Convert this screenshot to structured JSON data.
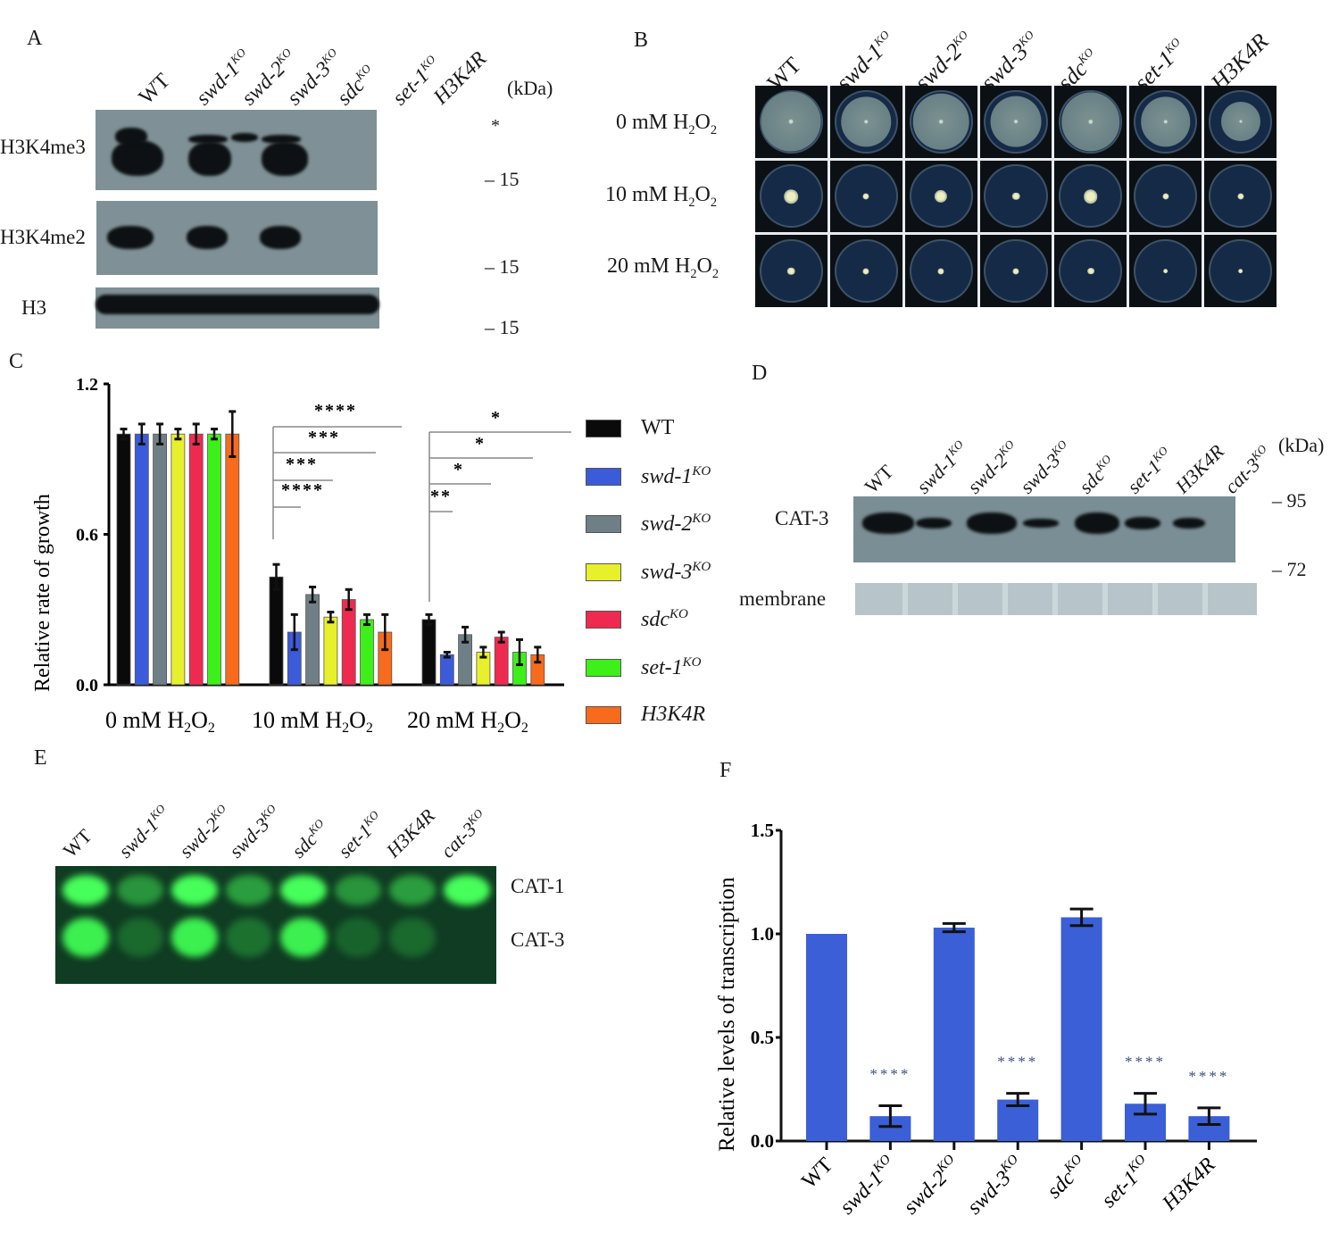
{
  "strains_7": [
    "WT",
    "swd-1",
    "swd-2",
    "swd-3",
    "sdc",
    "set-1",
    "H3K4R"
  ],
  "panels": {
    "A": {
      "letter": "A",
      "lanes": [
        {
          "base": "WT",
          "sup": ""
        },
        {
          "base": "swd-1",
          "sup": "KO"
        },
        {
          "base": "swd-2",
          "sup": "KO"
        },
        {
          "base": "swd-3",
          "sup": "KO"
        },
        {
          "base": "sdc",
          "sup": "KO"
        },
        {
          "base": "set-1",
          "sup": "KO"
        },
        {
          "base": "H3K4R",
          "sup": ""
        }
      ],
      "kda_label": "(kDa)",
      "rows": [
        {
          "label": "H3K4me3",
          "marker": "15",
          "star": "*"
        },
        {
          "label": "H3K4me2",
          "marker": "15"
        },
        {
          "label": "H3",
          "marker": "15"
        }
      ]
    },
    "B": {
      "letter": "B",
      "columns": [
        {
          "base": "WT",
          "sup": ""
        },
        {
          "base": "swd-1",
          "sup": "KO"
        },
        {
          "base": "swd-2",
          "sup": "KO"
        },
        {
          "base": "swd-3",
          "sup": "KO"
        },
        {
          "base": "sdc",
          "sup": "KO"
        },
        {
          "base": "set-1",
          "sup": "KO"
        },
        {
          "base": "H3K4R",
          "sup": ""
        }
      ],
      "rows": [
        {
          "prefix": "0 mM H",
          "sub1": "2",
          "mid": "O",
          "sub2": "2"
        },
        {
          "prefix": "10 mM H",
          "sub1": "2",
          "mid": "O",
          "sub2": "2"
        },
        {
          "prefix": "20 mM H",
          "sub1": "2",
          "mid": "O",
          "sub2": "2"
        }
      ]
    },
    "C": {
      "letter": "C"
    },
    "D": {
      "letter": "D",
      "lanes": [
        {
          "base": "WT",
          "sup": ""
        },
        {
          "base": "swd-1",
          "sup": "KO"
        },
        {
          "base": "swd-2",
          "sup": "KO"
        },
        {
          "base": "swd-3",
          "sup": "KO"
        },
        {
          "base": "sdc",
          "sup": "KO"
        },
        {
          "base": "set-1",
          "sup": "KO"
        },
        {
          "base": "H3K4R",
          "sup": ""
        },
        {
          "base": "cat-3",
          "sup": "KO"
        }
      ],
      "kda_label": "(kDa)",
      "row_label": "CAT-3",
      "membrane_label": "membrane",
      "markers": [
        "95",
        "72"
      ]
    },
    "E": {
      "letter": "E",
      "lanes": [
        {
          "base": "WT",
          "sup": ""
        },
        {
          "base": "swd-1",
          "sup": "KO"
        },
        {
          "base": "swd-2",
          "sup": "KO"
        },
        {
          "base": "swd-3",
          "sup": "KO"
        },
        {
          "base": "sdc",
          "sup": "KO"
        },
        {
          "base": "set-1",
          "sup": "KO"
        },
        {
          "base": "H3K4R",
          "sup": ""
        },
        {
          "base": "cat-3",
          "sup": "KO"
        }
      ],
      "bands": [
        "CAT-1",
        "CAT-3"
      ]
    },
    "F": {
      "letter": "F"
    }
  },
  "chart_data": [
    {
      "panel": "C",
      "type": "bar",
      "title": "",
      "xlabel": "",
      "ylabel": "Relative rate of growth",
      "ylim": [
        0,
        1.2
      ],
      "yticks": [
        "0.0",
        "0.6",
        "1.2"
      ],
      "categories": [
        "0 mM H2O2",
        "10 mM H2O2",
        "20 mM H2O2"
      ],
      "category_labels": [
        {
          "prefix": "0 mM H",
          "sub1": "2",
          "mid": "O",
          "sub2": "2"
        },
        {
          "prefix": "10 mM H",
          "sub1": "2",
          "mid": "O",
          "sub2": "2"
        },
        {
          "prefix": "20 mM H",
          "sub1": "2",
          "mid": "O",
          "sub2": "2"
        }
      ],
      "legend_position": "right",
      "grid": false,
      "series": [
        {
          "name": "WT",
          "label_base": "WT",
          "label_sup": "",
          "italic": false,
          "color": "#0a0a0a",
          "values": [
            1.0,
            0.43,
            0.26
          ],
          "errors": [
            0.02,
            0.05,
            0.02
          ]
        },
        {
          "name": "swd-1KO",
          "label_base": "swd-1",
          "label_sup": "KO",
          "italic": true,
          "color": "#3b5bdb",
          "values": [
            1.0,
            0.21,
            0.12
          ],
          "errors": [
            0.04,
            0.07,
            0.01
          ]
        },
        {
          "name": "swd-2KO",
          "label_base": "swd-2",
          "label_sup": "KO",
          "italic": true,
          "color": "#6f7f86",
          "values": [
            1.0,
            0.36,
            0.2
          ],
          "errors": [
            0.04,
            0.03,
            0.03
          ]
        },
        {
          "name": "swd-3KO",
          "label_base": "swd-3",
          "label_sup": "KO",
          "italic": true,
          "color": "#e8f02c",
          "values": [
            1.0,
            0.27,
            0.13
          ],
          "errors": [
            0.02,
            0.02,
            0.02
          ]
        },
        {
          "name": "sdcKO",
          "label_base": "sdc",
          "label_sup": "KO",
          "italic": true,
          "color": "#ef2a50",
          "values": [
            1.0,
            0.34,
            0.19
          ],
          "errors": [
            0.04,
            0.04,
            0.02
          ]
        },
        {
          "name": "set-1KO",
          "label_base": "set-1",
          "label_sup": "KO",
          "italic": true,
          "color": "#3ef01a",
          "values": [
            1.0,
            0.26,
            0.13
          ],
          "errors": [
            0.02,
            0.02,
            0.05
          ]
        },
        {
          "name": "H3K4R",
          "label_base": "H3K4R",
          "label_sup": "",
          "italic": true,
          "color": "#f86a1c",
          "values": [
            1.0,
            0.21,
            0.12
          ],
          "errors": [
            0.09,
            0.07,
            0.03
          ]
        }
      ],
      "significance": {
        "10 mM H2O2": [
          {
            "stars": "****",
            "compare": "WT vs swd-1KO"
          },
          {
            "stars": "***",
            "compare": "WT vs swd-3KO"
          },
          {
            "stars": "***",
            "compare": "WT vs set-1KO"
          },
          {
            "stars": "****",
            "compare": "WT vs H3K4R"
          }
        ],
        "20 mM H2O2": [
          {
            "stars": "**",
            "compare": "WT vs swd-1KO"
          },
          {
            "stars": "*",
            "compare": "WT vs swd-3KO"
          },
          {
            "stars": "*",
            "compare": "WT vs set-1KO"
          },
          {
            "stars": "*",
            "compare": "WT vs H3K4R"
          }
        ]
      }
    },
    {
      "panel": "F",
      "type": "bar",
      "title": "",
      "xlabel": "",
      "ylabel": "Relative levels of transcription",
      "ylim": [
        0,
        1.5
      ],
      "yticks": [
        "0.0",
        "0.5",
        "1.0",
        "1.5"
      ],
      "categories": [
        "WT",
        "swd-1KO",
        "swd-2KO",
        "swd-3KO",
        "sdcKO",
        "set-1KO",
        "H3K4R"
      ],
      "category_labels": [
        {
          "base": "WT",
          "sup": ""
        },
        {
          "base": "swd-1",
          "sup": "KO"
        },
        {
          "base": "swd-2",
          "sup": "KO"
        },
        {
          "base": "swd-3",
          "sup": "KO"
        },
        {
          "base": "sdc",
          "sup": "KO"
        },
        {
          "base": "set-1",
          "sup": "KO"
        },
        {
          "base": "H3K4R",
          "sup": ""
        }
      ],
      "grid": false,
      "color": "#3a5fd6",
      "values": [
        1.0,
        0.12,
        1.03,
        0.2,
        1.08,
        0.18,
        0.12
      ],
      "errors": [
        0.0,
        0.05,
        0.02,
        0.03,
        0.04,
        0.05,
        0.04
      ],
      "significance": [
        "",
        "****",
        "",
        "****",
        "",
        "****",
        "****"
      ]
    }
  ]
}
